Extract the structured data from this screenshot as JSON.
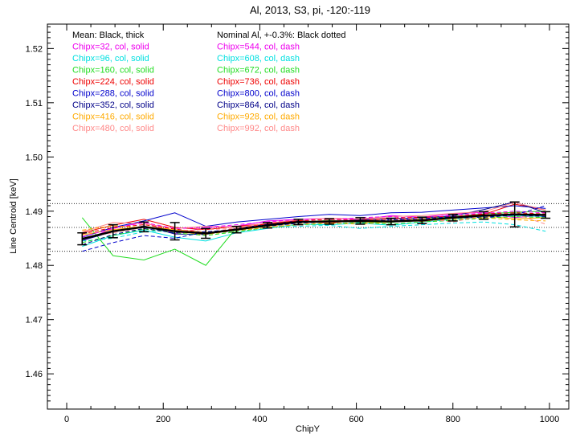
{
  "chart_data": {
    "type": "line",
    "title": "Al, 2013, S3, pi, -120:-119",
    "xlabel": "ChipY",
    "ylabel": "Line Centroid [keV]",
    "xlim": [
      -40,
      1040
    ],
    "ylim": [
      1.4535,
      1.5245
    ],
    "xticks": [
      0,
      200,
      400,
      600,
      800,
      1000
    ],
    "xtick_labels": [
      "0",
      "200",
      "400",
      "600",
      "800",
      "1000"
    ],
    "yticks": [
      1.46,
      1.47,
      1.48,
      1.49,
      1.5,
      1.51,
      1.52
    ],
    "ytick_labels": [
      "1.46",
      "1.47",
      "1.48",
      "1.49",
      "1.50",
      "1.51",
      "1.52"
    ],
    "x": [
      32,
      96,
      160,
      224,
      288,
      352,
      416,
      480,
      544,
      608,
      672,
      736,
      800,
      864,
      928,
      992
    ],
    "mean": {
      "name": "Mean: Black, thick",
      "color": "#000000",
      "values": [
        1.4849,
        1.4863,
        1.4871,
        1.4863,
        1.4859,
        1.4866,
        1.4874,
        1.488,
        1.4881,
        1.4882,
        1.4881,
        1.4883,
        1.4888,
        1.4892,
        1.4894,
        1.4893
      ],
      "errors": [
        0.0011,
        0.0012,
        0.0009,
        0.0016,
        0.0009,
        0.0006,
        0.0005,
        0.0005,
        0.0005,
        0.0006,
        0.0006,
        0.0006,
        0.0006,
        0.0007,
        0.0023,
        0.0006
      ]
    },
    "nominal": {
      "name": "Nominal Al, +-0.3%: Black dotted",
      "values": [
        1.4826,
        1.487,
        1.4914
      ]
    },
    "series": [
      {
        "name": "Chipx=32, col, solid",
        "color": "#ee00ee",
        "dash": false,
        "values": [
          1.4845,
          1.4868,
          1.488,
          1.4858,
          1.487,
          1.4872,
          1.4882,
          1.4885,
          1.4887,
          1.4884,
          1.4892,
          1.4889,
          1.4895,
          1.4898,
          1.4888,
          1.4893
        ]
      },
      {
        "name": "Chipx=96, col, solid",
        "color": "#00e0e0",
        "dash": false,
        "values": [
          1.4835,
          1.4855,
          1.4865,
          1.4852,
          1.4845,
          1.486,
          1.4868,
          1.4876,
          1.4875,
          1.4878,
          1.4874,
          1.488,
          1.4885,
          1.489,
          1.4892,
          1.489
        ]
      },
      {
        "name": "Chipx=160, col, solid",
        "color": "#22dd22",
        "dash": false,
        "values": [
          1.4888,
          1.4818,
          1.481,
          1.483,
          1.48,
          1.487,
          1.4872,
          1.488,
          1.4883,
          1.488,
          1.4879,
          1.4887,
          1.489,
          1.4895,
          1.4898,
          1.49
        ]
      },
      {
        "name": "Chipx=224, col, solid",
        "color": "#ee0000",
        "dash": false,
        "values": [
          1.486,
          1.4874,
          1.4885,
          1.487,
          1.4866,
          1.4872,
          1.4877,
          1.4883,
          1.4878,
          1.4884,
          1.4887,
          1.4881,
          1.4889,
          1.4894,
          1.4913,
          1.4902
        ]
      },
      {
        "name": "Chipx=288, col, solid",
        "color": "#0000cc",
        "dash": false,
        "values": [
          1.4852,
          1.487,
          1.4882,
          1.4897,
          1.4872,
          1.488,
          1.4885,
          1.489,
          1.4894,
          1.4892,
          1.4897,
          1.4898,
          1.4902,
          1.4906,
          1.491,
          1.4905
        ]
      },
      {
        "name": "Chipx=352, col, solid",
        "color": "#000088",
        "dash": false,
        "values": [
          1.4846,
          1.4862,
          1.4873,
          1.4858,
          1.4857,
          1.4868,
          1.4876,
          1.4882,
          1.488,
          1.4884,
          1.4886,
          1.4888,
          1.4891,
          1.4903,
          1.4917,
          1.4897
        ]
      },
      {
        "name": "Chipx=416, col, solid",
        "color": "#ffaa00",
        "dash": false,
        "values": [
          1.4856,
          1.4866,
          1.4872,
          1.4866,
          1.4861,
          1.4865,
          1.4872,
          1.4879,
          1.4882,
          1.4879,
          1.4882,
          1.4885,
          1.4888,
          1.4891,
          1.4886,
          1.4888
        ]
      },
      {
        "name": "Chipx=480, col, solid",
        "color": "#ff8888",
        "dash": false,
        "values": [
          1.4862,
          1.4879,
          1.4877,
          1.4868,
          1.4872,
          1.487,
          1.4878,
          1.4884,
          1.4887,
          1.4886,
          1.489,
          1.4892,
          1.4896,
          1.4899,
          1.4916,
          1.4902
        ]
      },
      {
        "name": "Chipx=544, col, dash",
        "color": "#ee00ee",
        "dash": true,
        "values": [
          1.4853,
          1.4868,
          1.4879,
          1.4868,
          1.487,
          1.4875,
          1.488,
          1.4885,
          1.4884,
          1.4888,
          1.489,
          1.4886,
          1.4893,
          1.4896,
          1.49,
          1.4897
        ]
      },
      {
        "name": "Chipx=608, col, dash",
        "color": "#00e0e0",
        "dash": true,
        "values": [
          1.4845,
          1.485,
          1.4862,
          1.4865,
          1.4858,
          1.4863,
          1.487,
          1.4872,
          1.4874,
          1.4868,
          1.4872,
          1.4875,
          1.4878,
          1.488,
          1.4875,
          1.4863
        ]
      },
      {
        "name": "Chipx=672, col, dash",
        "color": "#22dd22",
        "dash": true,
        "values": [
          1.4842,
          1.4855,
          1.4867,
          1.486,
          1.4855,
          1.4862,
          1.487,
          1.4875,
          1.4877,
          1.4879,
          1.4876,
          1.488,
          1.4883,
          1.4887,
          1.489,
          1.4888
        ]
      },
      {
        "name": "Chipx=736, col, dash",
        "color": "#ee0000",
        "dash": true,
        "values": [
          1.4858,
          1.487,
          1.4875,
          1.4867,
          1.486,
          1.4868,
          1.4877,
          1.4882,
          1.4885,
          1.4883,
          1.4887,
          1.4889,
          1.489,
          1.4895,
          1.4897,
          1.4895
        ]
      },
      {
        "name": "Chipx=800, col, dash",
        "color": "#0000cc",
        "dash": true,
        "values": [
          1.4826,
          1.4842,
          1.4855,
          1.485,
          1.4862,
          1.4866,
          1.4873,
          1.4878,
          1.4882,
          1.488,
          1.4884,
          1.4886,
          1.489,
          1.4888,
          1.4893,
          1.491
        ]
      },
      {
        "name": "Chipx=864, col, dash",
        "color": "#000088",
        "dash": true,
        "values": [
          1.4838,
          1.4857,
          1.4868,
          1.486,
          1.4862,
          1.4866,
          1.4872,
          1.4878,
          1.488,
          1.4882,
          1.4884,
          1.4883,
          1.4887,
          1.4889,
          1.4893,
          1.489
        ]
      },
      {
        "name": "Chipx=928, col, dash",
        "color": "#ffaa00",
        "dash": true,
        "values": [
          1.4865,
          1.4873,
          1.487,
          1.4862,
          1.4857,
          1.4864,
          1.487,
          1.4876,
          1.4878,
          1.4876,
          1.488,
          1.4882,
          1.4885,
          1.4888,
          1.4884,
          1.4882
        ]
      },
      {
        "name": "Chipx=992, col, dash",
        "color": "#ff8888",
        "dash": true,
        "values": [
          1.485,
          1.486,
          1.487,
          1.4864,
          1.4866,
          1.4868,
          1.4875,
          1.488,
          1.4884,
          1.4882,
          1.4885,
          1.4887,
          1.488,
          1.4892,
          1.4895,
          1.4876
        ]
      }
    ],
    "legend_placement": "top-left",
    "grid": false
  }
}
